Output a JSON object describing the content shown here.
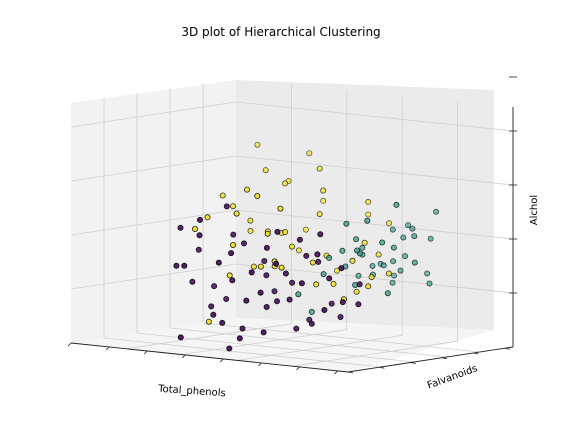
{
  "chart_data": {
    "type": "scatter",
    "projection": "3d",
    "title": "3D plot of Hierarchical Clustering",
    "xlabel": "Total_phenols",
    "ylabel": "Falvanoids",
    "zlabel": "Alchol",
    "grid": true,
    "legend": "none",
    "colors": {
      "cluster_0": "#4b1060",
      "cluster_1": "#3aa18e",
      "cluster_2": "#f2e01f",
      "point_edge": "#000000",
      "pane_left": "#f2f2f2",
      "pane_back": "#ebebeb",
      "pane_floor": "#f5f5f5",
      "grid_line": "#cfcfcf",
      "background": "#ffffff"
    },
    "series": [
      {
        "cluster": 2,
        "points": [
          [
            1.1,
            4.26,
            14.1
          ],
          [
            1.55,
            4.26,
            13.55
          ],
          [
            1.42,
            3.84,
            13.75
          ],
          [
            1.75,
            4.47,
            14.02
          ],
          [
            2.3,
            3.63,
            13.9
          ],
          [
            2.05,
            4.26,
            13.28
          ],
          [
            2.6,
            4.47,
            13.1
          ],
          [
            2.9,
            3.84,
            13.4
          ],
          [
            1.9,
            3.42,
            13.62
          ],
          [
            2.5,
            3.21,
            13.2
          ],
          [
            3.1,
            4.05,
            13.05
          ],
          [
            1.3,
            2.79,
            13.4
          ],
          [
            1.6,
            3.0,
            13.0
          ],
          [
            2.2,
            2.79,
            12.9
          ],
          [
            2.7,
            3.0,
            12.55
          ],
          [
            3.25,
            3.42,
            12.6
          ],
          [
            1.85,
            2.58,
            12.3
          ],
          [
            2.35,
            2.16,
            12.4
          ],
          [
            3.0,
            2.58,
            12.15
          ],
          [
            2.45,
            3.84,
            12.2
          ],
          [
            2.0,
            3.63,
            12.5
          ],
          [
            3.45,
            2.79,
            12.3
          ],
          [
            2.65,
            1.74,
            12.45
          ],
          [
            1.5,
            3.21,
            12.8
          ],
          [
            3.35,
            2.16,
            11.97
          ],
          [
            1.7,
            1.53,
            11.45
          ],
          [
            2.3,
            1.74,
            13.6
          ],
          [
            1.9,
            4.05,
            12.8
          ],
          [
            3.15,
            3.21,
            12.8
          ],
          [
            2.8,
            2.37,
            12.5
          ],
          [
            3.05,
            1.95,
            12.2
          ],
          [
            2.15,
            1.32,
            12.8
          ],
          [
            1.65,
            2.37,
            13.3
          ],
          [
            2.55,
            1.53,
            13.02
          ],
          [
            2.4,
            2.58,
            12.7
          ],
          [
            1.38,
            2.16,
            13.1
          ],
          [
            1.85,
            2.37,
            13.6
          ],
          [
            2.75,
            1.32,
            12.6
          ],
          [
            2.05,
            3.0,
            12.85
          ],
          [
            3.6,
            2.37,
            12.2
          ],
          [
            3.8,
            2.58,
            12.42
          ],
          [
            1.95,
            2.79,
            12.88
          ],
          [
            2.25,
            1.95,
            12.4
          ],
          [
            1.6,
            1.32,
            13.0
          ],
          [
            2.1,
            1.53,
            13.3
          ],
          [
            3.3,
            2.65,
            12.05
          ],
          [
            2.55,
            3.21,
            13.6
          ],
          [
            1.8,
            1.95,
            12.2
          ],
          [
            3.55,
            2.0,
            12.65
          ],
          [
            2.7,
            1.6,
            13.45
          ]
        ]
      },
      {
        "cluster": 1,
        "points": [
          [
            3.85,
            2.7,
            13.56
          ],
          [
            3.05,
            3.35,
            12.58
          ],
          [
            2.9,
            3.15,
            12.38
          ],
          [
            3.9,
            3.8,
            13.36
          ],
          [
            3.8,
            3.35,
            12.98
          ],
          [
            3.55,
            2.9,
            12.88
          ],
          [
            3.2,
            2.55,
            13.18
          ],
          [
            3.7,
            3.5,
            13.08
          ],
          [
            3.6,
            3.15,
            12.78
          ],
          [
            3.25,
            3.85,
            12.98
          ],
          [
            3.4,
            4.0,
            13.06
          ],
          [
            3.95,
            3.05,
            12.58
          ],
          [
            3.0,
            2.85,
            12.68
          ],
          [
            3.35,
            3.65,
            12.48
          ],
          [
            3.75,
            2.65,
            12.08
          ],
          [
            3.1,
            3.55,
            12.38
          ],
          [
            2.95,
            2.55,
            12.58
          ],
          [
            3.45,
            2.35,
            12.78
          ],
          [
            3.65,
            4.05,
            12.28
          ],
          [
            3.15,
            4.1,
            12.18
          ],
          [
            3.5,
            3.05,
            12.48
          ],
          [
            3.3,
            2.75,
            12.68
          ],
          [
            3.9,
            3.6,
            12.18
          ],
          [
            3.2,
            3.95,
            12.08
          ],
          [
            2.8,
            2.7,
            12.28
          ],
          [
            3.05,
            3.9,
            12.38
          ],
          [
            3.55,
            2.45,
            13.28
          ],
          [
            3.75,
            3.95,
            12.88
          ],
          [
            2.85,
            3.65,
            12.18
          ],
          [
            3.45,
            3.75,
            12.88
          ],
          [
            3.6,
            3.35,
            12.38
          ],
          [
            3.15,
            2.95,
            12.88
          ],
          [
            2.6,
            2.35,
            11.95
          ],
          [
            3.25,
            3.25,
            12.28
          ],
          [
            2.7,
            2.55,
            11.65
          ],
          [
            3.35,
            2.5,
            12.18
          ],
          [
            3.5,
            3.7,
            12.58
          ],
          [
            3.0,
            3.45,
            12.68
          ]
        ]
      },
      {
        "cluster": 0,
        "points": [
          [
            1.35,
            1.28,
            12.36
          ],
          [
            1.4,
            1.3,
            13.0
          ],
          [
            1.55,
            1.1,
            12.4
          ],
          [
            1.65,
            1.35,
            12.9
          ],
          [
            1.8,
            1.05,
            13.2
          ],
          [
            1.5,
            1.45,
            12.1
          ],
          [
            2.0,
            1.2,
            12.5
          ],
          [
            2.1,
            1.4,
            12.2
          ],
          [
            2.25,
            1.05,
            12.7
          ],
          [
            2.35,
            1.3,
            11.9
          ],
          [
            2.5,
            1.15,
            12.4
          ],
          [
            2.6,
            1.4,
            12.8
          ],
          [
            2.7,
            1.0,
            12.1
          ],
          [
            1.95,
            1.55,
            13.4
          ],
          [
            2.15,
            1.65,
            12.8
          ],
          [
            2.45,
            1.7,
            12.3
          ],
          [
            2.55,
            1.5,
            11.8
          ],
          [
            2.8,
            1.3,
            13.1
          ],
          [
            2.9,
            1.05,
            12.6
          ],
          [
            3.0,
            1.25,
            12.0
          ],
          [
            1.7,
            1.6,
            11.7
          ],
          [
            1.85,
            1.35,
            11.6
          ],
          [
            2.05,
            1.2,
            11.5
          ],
          [
            2.2,
            1.5,
            11.4
          ],
          [
            2.4,
            1.0,
            11.3
          ],
          [
            2.65,
            1.6,
            11.9
          ],
          [
            2.85,
            1.45,
            12.4
          ],
          [
            3.05,
            1.65,
            12.7
          ],
          [
            3.1,
            1.35,
            13.0
          ],
          [
            3.2,
            1.2,
            12.3
          ],
          [
            1.45,
            1.75,
            12.6
          ],
          [
            1.6,
            1.9,
            12.0
          ],
          [
            1.9,
            1.85,
            12.9
          ],
          [
            2.3,
            1.95,
            12.5
          ],
          [
            2.75,
            1.85,
            12.2
          ],
          [
            3.15,
            1.8,
            12.6
          ],
          [
            3.3,
            1.55,
            13.1
          ],
          [
            3.4,
            1.25,
            12.8
          ],
          [
            3.5,
            1.4,
            12.4
          ],
          [
            3.6,
            1.6,
            12.0
          ],
          [
            3.55,
            1.15,
            11.9
          ],
          [
            3.7,
            1.35,
            12.6
          ],
          [
            3.75,
            1.8,
            12.3
          ],
          [
            3.85,
            1.55,
            12.0
          ],
          [
            3.4,
            1.95,
            11.7
          ],
          [
            3.25,
            2.0,
            11.9
          ],
          [
            2.95,
            1.95,
            11.6
          ],
          [
            1.5,
            1.1,
            11.2
          ],
          [
            2.2,
            1.1,
            11.1
          ],
          [
            2.6,
            1.3,
            11.4
          ],
          [
            3.0,
            1.45,
            11.5
          ],
          [
            3.2,
            1.5,
            11.6
          ],
          [
            1.75,
            1.95,
            11.8
          ],
          [
            2.4,
            2.05,
            12.0
          ]
        ]
      }
    ]
  }
}
